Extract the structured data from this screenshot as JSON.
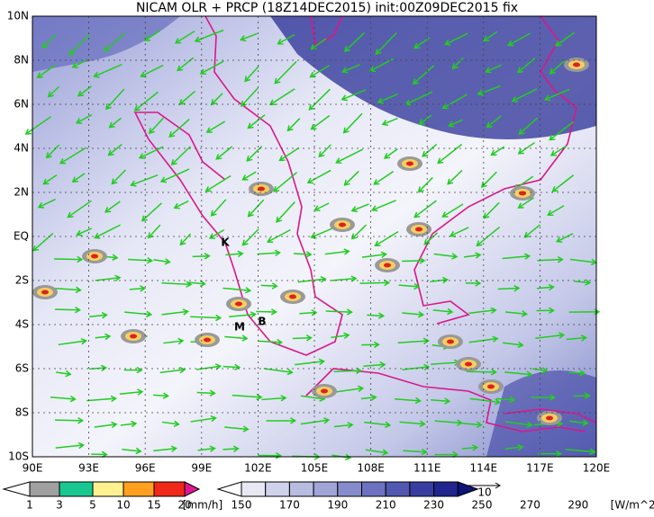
{
  "title": "NICAM OLR + PRCP (18Z14DEC2015) init:00Z09DEC2015 fix",
  "map": {
    "lat_labels": [
      "10N",
      "8N",
      "6N",
      "4N",
      "2N",
      "EQ",
      "2S",
      "4S",
      "6S",
      "8S",
      "10S"
    ],
    "lon_labels": [
      "90E",
      "93E",
      "96E",
      "99E",
      "102E",
      "105E",
      "108E",
      "111E",
      "114E",
      "117E",
      "120E"
    ],
    "place_marks": [
      "K",
      "M",
      "B"
    ],
    "vector_scale": "10"
  },
  "legends": [
    {
      "ticks": [
        "1",
        "3",
        "5",
        "10",
        "15",
        "20"
      ],
      "unit": "[mm/h]"
    },
    {
      "ticks": [
        "150",
        "170",
        "190",
        "210",
        "230",
        "250",
        "270",
        "290"
      ],
      "unit": "[W/m^2]"
    }
  ]
}
